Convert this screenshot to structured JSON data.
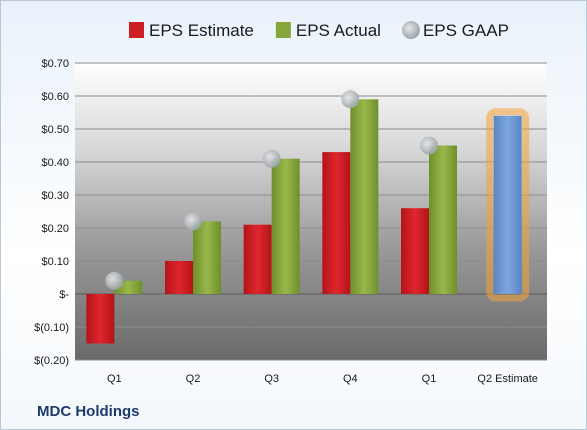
{
  "company": "MDC Holdings",
  "legend": [
    {
      "label": "EPS Estimate",
      "color": "#cc1e24",
      "shape": "square"
    },
    {
      "label": "EPS Actual",
      "color": "#86a63a",
      "shape": "square"
    },
    {
      "label": "EPS GAAP",
      "color": "#c2c7cc",
      "shape": "circle"
    }
  ],
  "highlight_color": "#f2a23a",
  "estimate_color": "#6a97d3",
  "chart_data": {
    "type": "bar",
    "categories": [
      "Q1",
      "Q2",
      "Q3",
      "Q4",
      "Q1",
      "Q2 Estimate"
    ],
    "series": [
      {
        "name": "EPS Estimate",
        "values": [
          -0.15,
          0.1,
          0.21,
          0.43,
          0.26,
          null
        ]
      },
      {
        "name": "EPS Actual",
        "values": [
          0.04,
          0.22,
          0.41,
          0.59,
          0.45,
          0.54
        ]
      },
      {
        "name": "EPS GAAP",
        "values": [
          0.04,
          0.22,
          0.41,
          0.59,
          0.45,
          null
        ]
      }
    ],
    "ylim": [
      -0.2,
      0.7
    ],
    "yticks": [
      {
        "value": 0.7,
        "label": "$0.70"
      },
      {
        "value": 0.6,
        "label": "$0.60"
      },
      {
        "value": 0.5,
        "label": "$0.50"
      },
      {
        "value": 0.4,
        "label": "$0.40"
      },
      {
        "value": 0.3,
        "label": "$0.30"
      },
      {
        "value": 0.2,
        "label": "$0.20"
      },
      {
        "value": 0.1,
        "label": "$0.10"
      },
      {
        "value": 0.0,
        "label": "$-"
      },
      {
        "value": -0.1,
        "label": "$(0.10)"
      },
      {
        "value": -0.2,
        "label": "$(0.20)"
      }
    ],
    "grid": true,
    "legend_position": "top"
  }
}
